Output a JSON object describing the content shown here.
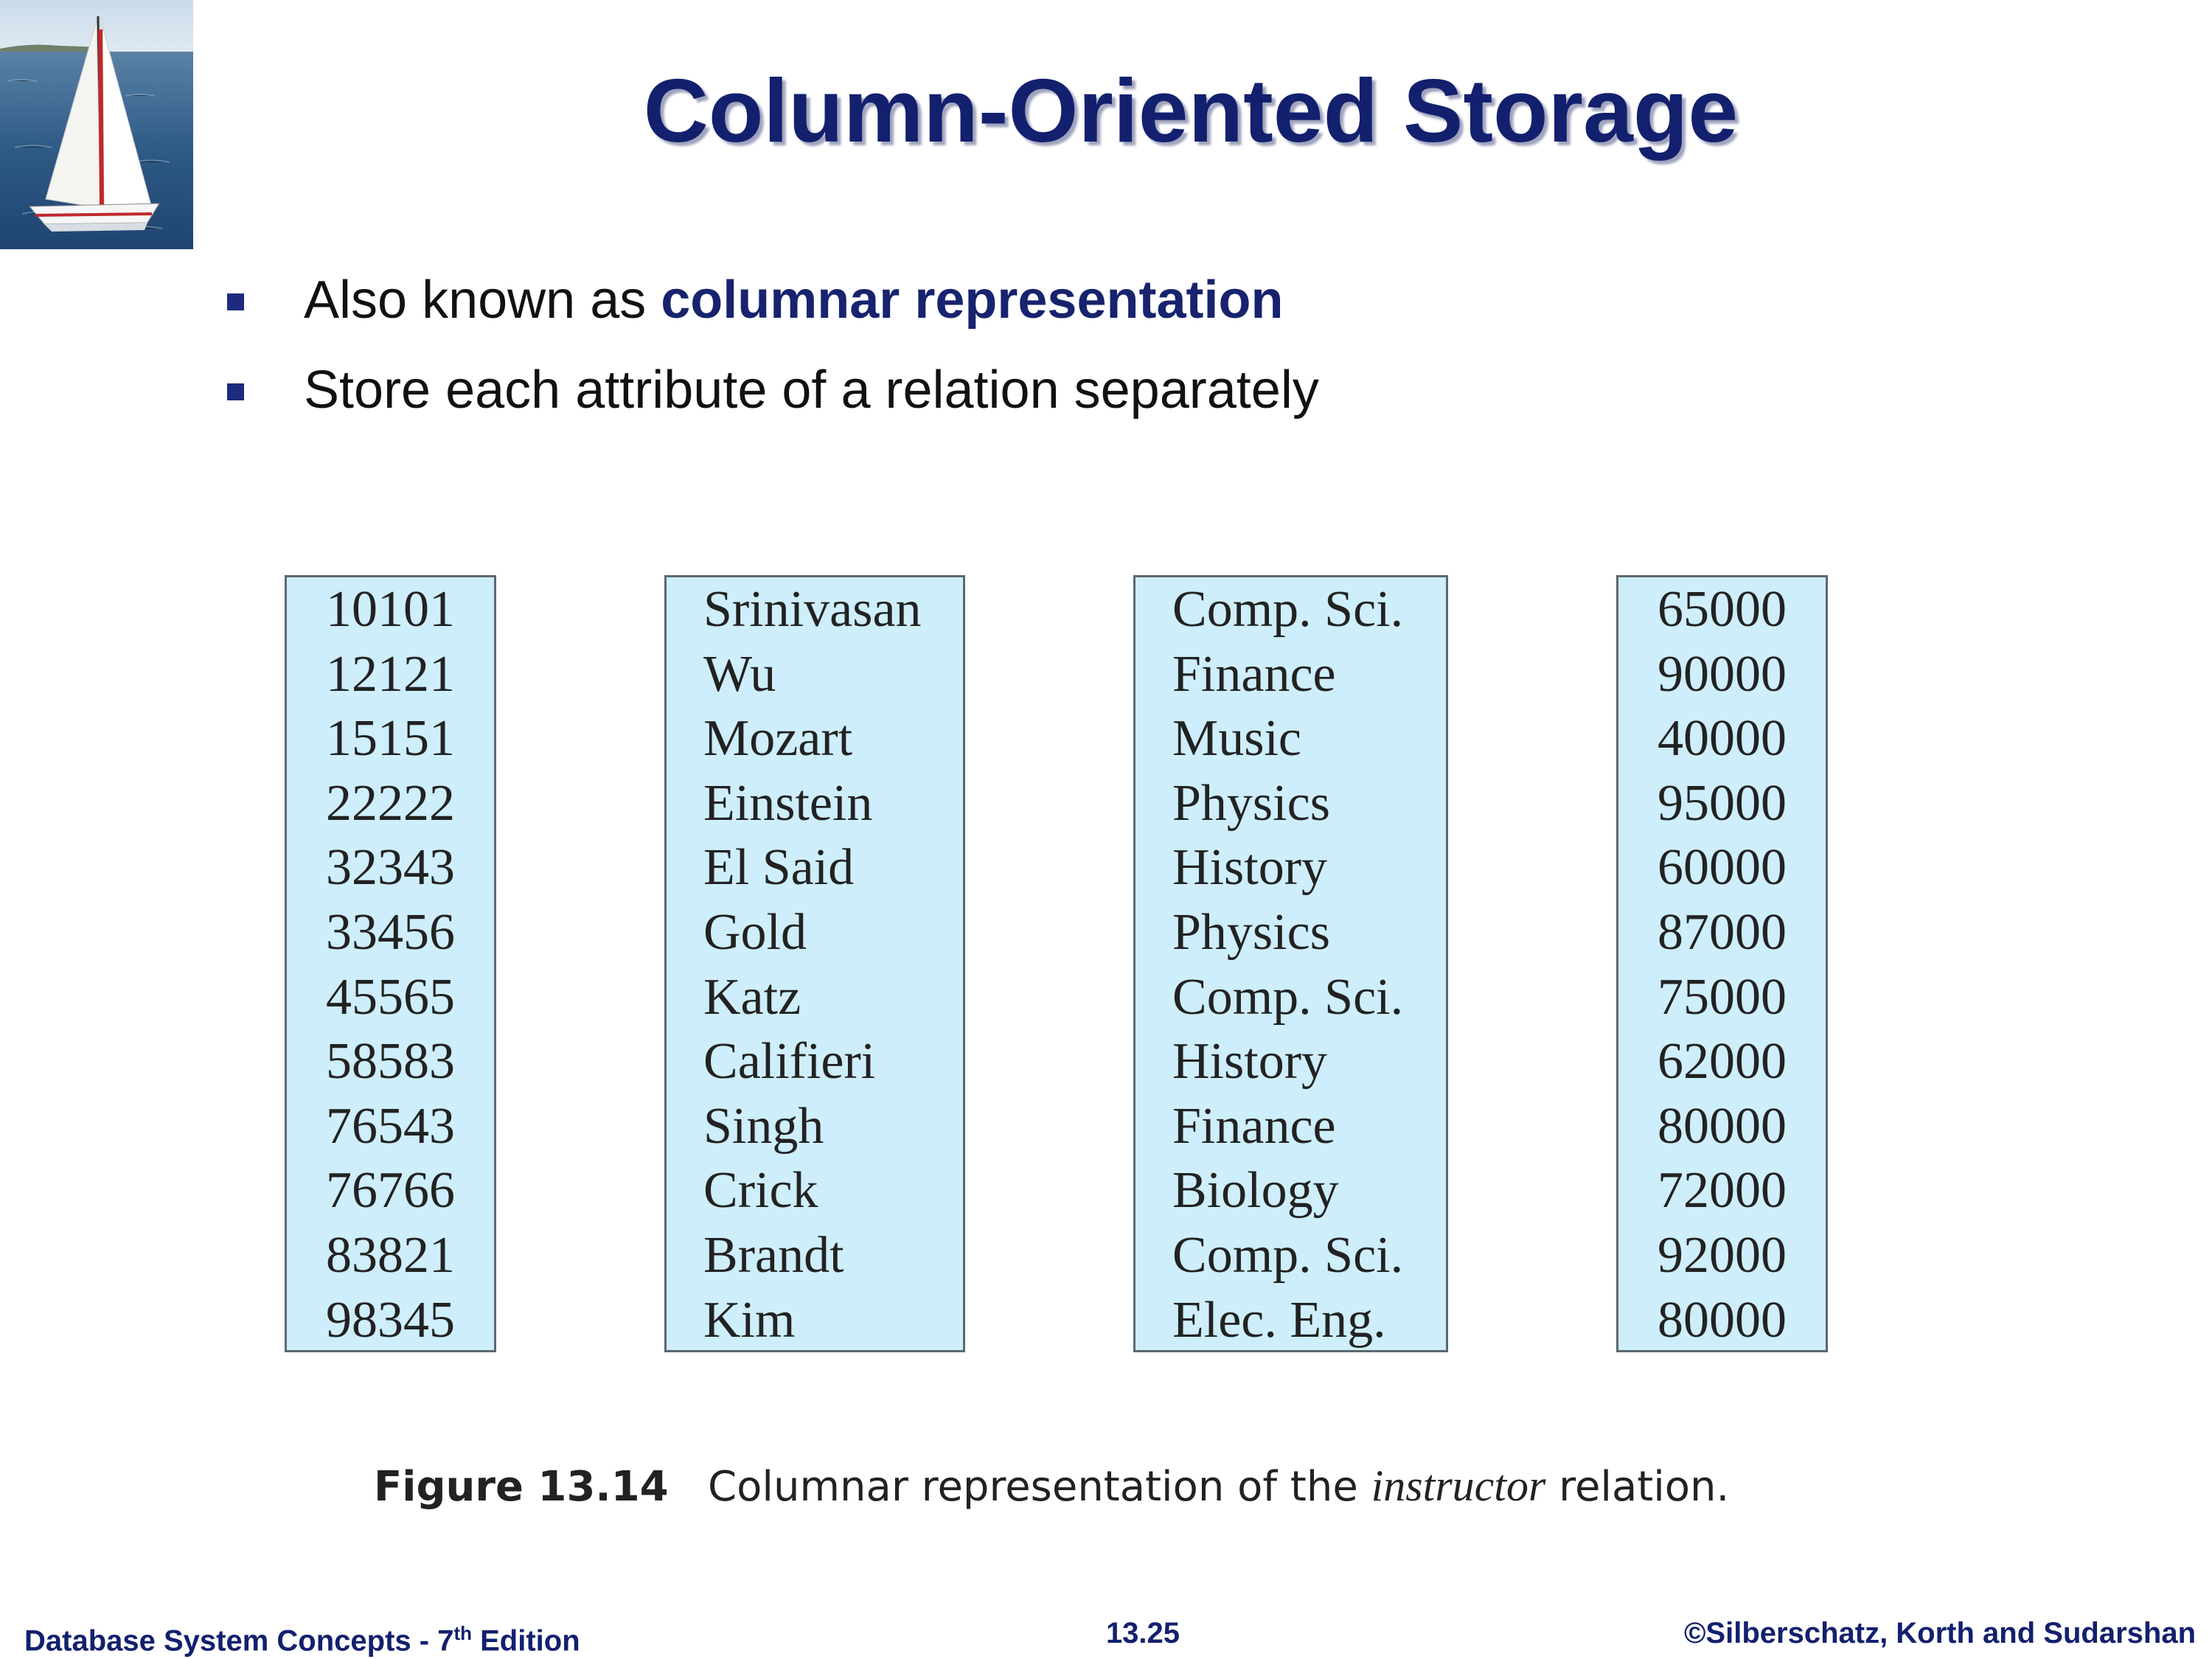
{
  "header": {
    "title": "Column-Oriented Storage"
  },
  "bullets": [
    {
      "prefix": "Also known as ",
      "emphasis": "columnar representation"
    },
    {
      "prefix": "Store each attribute of a relation separately",
      "emphasis": ""
    }
  ],
  "figure": {
    "columns": [
      {
        "align": "center",
        "values": [
          "10101",
          "12121",
          "15151",
          "22222",
          "32343",
          "33456",
          "45565",
          "58583",
          "76543",
          "76766",
          "83821",
          "98345"
        ]
      },
      {
        "align": "left",
        "values": [
          "Srinivasan",
          "Wu",
          "Mozart",
          "Einstein",
          "El Said",
          "Gold",
          "Katz",
          "Califieri",
          "Singh",
          "Crick",
          "Brandt",
          "Kim"
        ]
      },
      {
        "align": "left",
        "values": [
          "Comp. Sci.",
          "Finance",
          "Music",
          "Physics",
          "History",
          "Physics",
          "Comp. Sci.",
          "History",
          "Finance",
          "Biology",
          "Comp. Sci.",
          "Elec. Eng."
        ]
      },
      {
        "align": "center",
        "values": [
          "65000",
          "90000",
          "40000",
          "95000",
          "60000",
          "87000",
          "75000",
          "62000",
          "80000",
          "72000",
          "92000",
          "80000"
        ]
      }
    ],
    "caption_label": "Figure 13.14",
    "caption_text_before": "Columnar representation of the ",
    "caption_relation": "instructor",
    "caption_text_after": " relation."
  },
  "footer": {
    "left_text": "Database System Concepts - 7",
    "left_sup": "th",
    "left_after": " Edition",
    "page_number": "13.25",
    "right_text": "©Silberschatz, Korth and Sudarshan"
  },
  "colors": {
    "title": "#13206e",
    "bullet": "#1e2a7c",
    "column_fill": "#cdeefa",
    "column_border": "#5d6870"
  },
  "icons": {
    "logo": "sailboat-logo"
  }
}
